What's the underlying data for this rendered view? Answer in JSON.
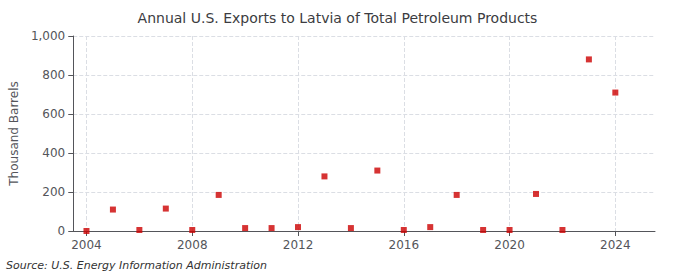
{
  "chart_data": {
    "type": "scatter",
    "title": "Annual U.S. Exports to Latvia of Total Petroleum Products",
    "y_label": "Thousand Barrels",
    "annotations": [
      "Source: U.S. Energy Information Administration"
    ],
    "x": [
      2004,
      2005,
      2006,
      2007,
      2008,
      2009,
      2010,
      2011,
      2012,
      2013,
      2014,
      2015,
      2016,
      2017,
      2018,
      2019,
      2020,
      2021,
      2022,
      2023,
      2024
    ],
    "values": [
      0,
      110,
      5,
      115,
      5,
      185,
      15,
      15,
      20,
      280,
      15,
      310,
      5,
      20,
      185,
      5,
      5,
      190,
      5,
      880,
      710
    ],
    "color": "#cc0000",
    "marker": "square",
    "xlim": [
      2003.5,
      2025.5
    ],
    "xticks": [
      2004,
      2008,
      2012,
      2016,
      2020,
      2024
    ],
    "ylim": [
      0,
      1000
    ],
    "yticks": [
      0,
      200,
      400,
      600,
      800,
      {
        "value": 1000,
        "label": "1,000"
      }
    ],
    "grid": true
  }
}
